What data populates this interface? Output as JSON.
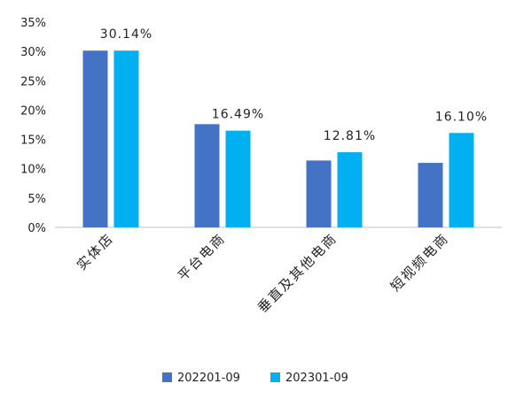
{
  "chart_data": {
    "type": "bar",
    "title": "",
    "xlabel": "",
    "ylabel": "",
    "categories": [
      "实体店",
      "平台电商",
      "垂直及其他电商",
      "短视频电商"
    ],
    "series": [
      {
        "name": "202201-09",
        "color": "#4472C4",
        "values": [
          30.14,
          17.6,
          11.4,
          11.0
        ]
      },
      {
        "name": "202301-09",
        "color": "#00B0F0",
        "values": [
          30.14,
          16.49,
          12.81,
          16.1
        ]
      }
    ],
    "data_labels": [
      "30.14%",
      "16.49%",
      "12.81%",
      "16.10%"
    ],
    "y_ticks": [
      "0%",
      "5%",
      "10%",
      "15%",
      "20%",
      "25%",
      "30%",
      "35%"
    ],
    "ylim": [
      0,
      35
    ],
    "grid": false,
    "legend_position": "bottom"
  }
}
